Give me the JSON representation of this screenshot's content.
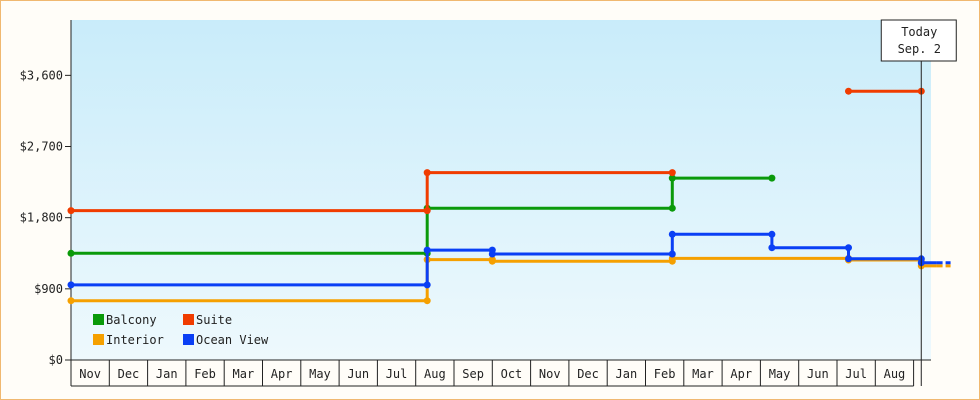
{
  "chart_data": {
    "type": "line",
    "step": true,
    "y_unit_prefix": "$",
    "ylim": [
      0,
      4300
    ],
    "yticks": [
      0,
      900,
      1800,
      2700,
      3600
    ],
    "yticklabels": [
      "$0",
      "$900",
      "$1,800",
      "$2,700",
      "$3,600"
    ],
    "categories": [
      "Nov",
      "Dec",
      "Jan",
      "Feb",
      "Mar",
      "Apr",
      "May",
      "Jun",
      "Jul",
      "Aug",
      "Sep",
      "Oct",
      "Nov",
      "Dec",
      "Jan",
      "Feb",
      "Mar",
      "Apr",
      "May",
      "Jun",
      "Jul",
      "Aug"
    ],
    "today": {
      "line1": "Today",
      "line2": "Sep. 2",
      "x": 22.2
    },
    "grid": false,
    "legend_position": "bottom-left",
    "series": [
      {
        "name": "Balcony",
        "color": "#0a9a0a",
        "points": [
          [
            0,
            1350
          ],
          [
            9.3,
            1350
          ],
          [
            9.3,
            1920
          ],
          [
            15.7,
            1920
          ],
          [
            15.7,
            2300
          ],
          [
            18.3,
            2300
          ]
        ]
      },
      {
        "name": "Suite",
        "color": "#f03c00",
        "points": [
          [
            0,
            1890
          ],
          [
            9.3,
            1890
          ],
          [
            9.3,
            2370
          ],
          [
            15.7,
            2370
          ]
        ],
        "segments_extra": [
          [
            [
              20.3,
              3400
            ],
            [
              22.2,
              3400
            ]
          ]
        ]
      },
      {
        "name": "Interior",
        "color": "#f5a000",
        "points": [
          [
            0,
            750
          ],
          [
            9.3,
            750
          ],
          [
            9.3,
            1270
          ],
          [
            11.0,
            1270
          ],
          [
            11.0,
            1250
          ],
          [
            15.7,
            1250
          ],
          [
            15.7,
            1285
          ],
          [
            20.3,
            1285
          ],
          [
            20.3,
            1265
          ],
          [
            22.2,
            1265
          ],
          [
            22.2,
            1190
          ],
          [
            22.6,
            1190
          ]
        ]
      },
      {
        "name": "Ocean View",
        "color": "#0a3ff5",
        "points": [
          [
            0,
            950
          ],
          [
            9.3,
            950
          ],
          [
            9.3,
            1390
          ],
          [
            11.0,
            1390
          ],
          [
            11.0,
            1340
          ],
          [
            15.7,
            1340
          ],
          [
            15.7,
            1590
          ],
          [
            18.3,
            1590
          ],
          [
            18.3,
            1420
          ],
          [
            20.3,
            1420
          ],
          [
            20.3,
            1280
          ],
          [
            22.2,
            1280
          ],
          [
            22.2,
            1230
          ],
          [
            22.6,
            1230
          ]
        ]
      }
    ]
  }
}
